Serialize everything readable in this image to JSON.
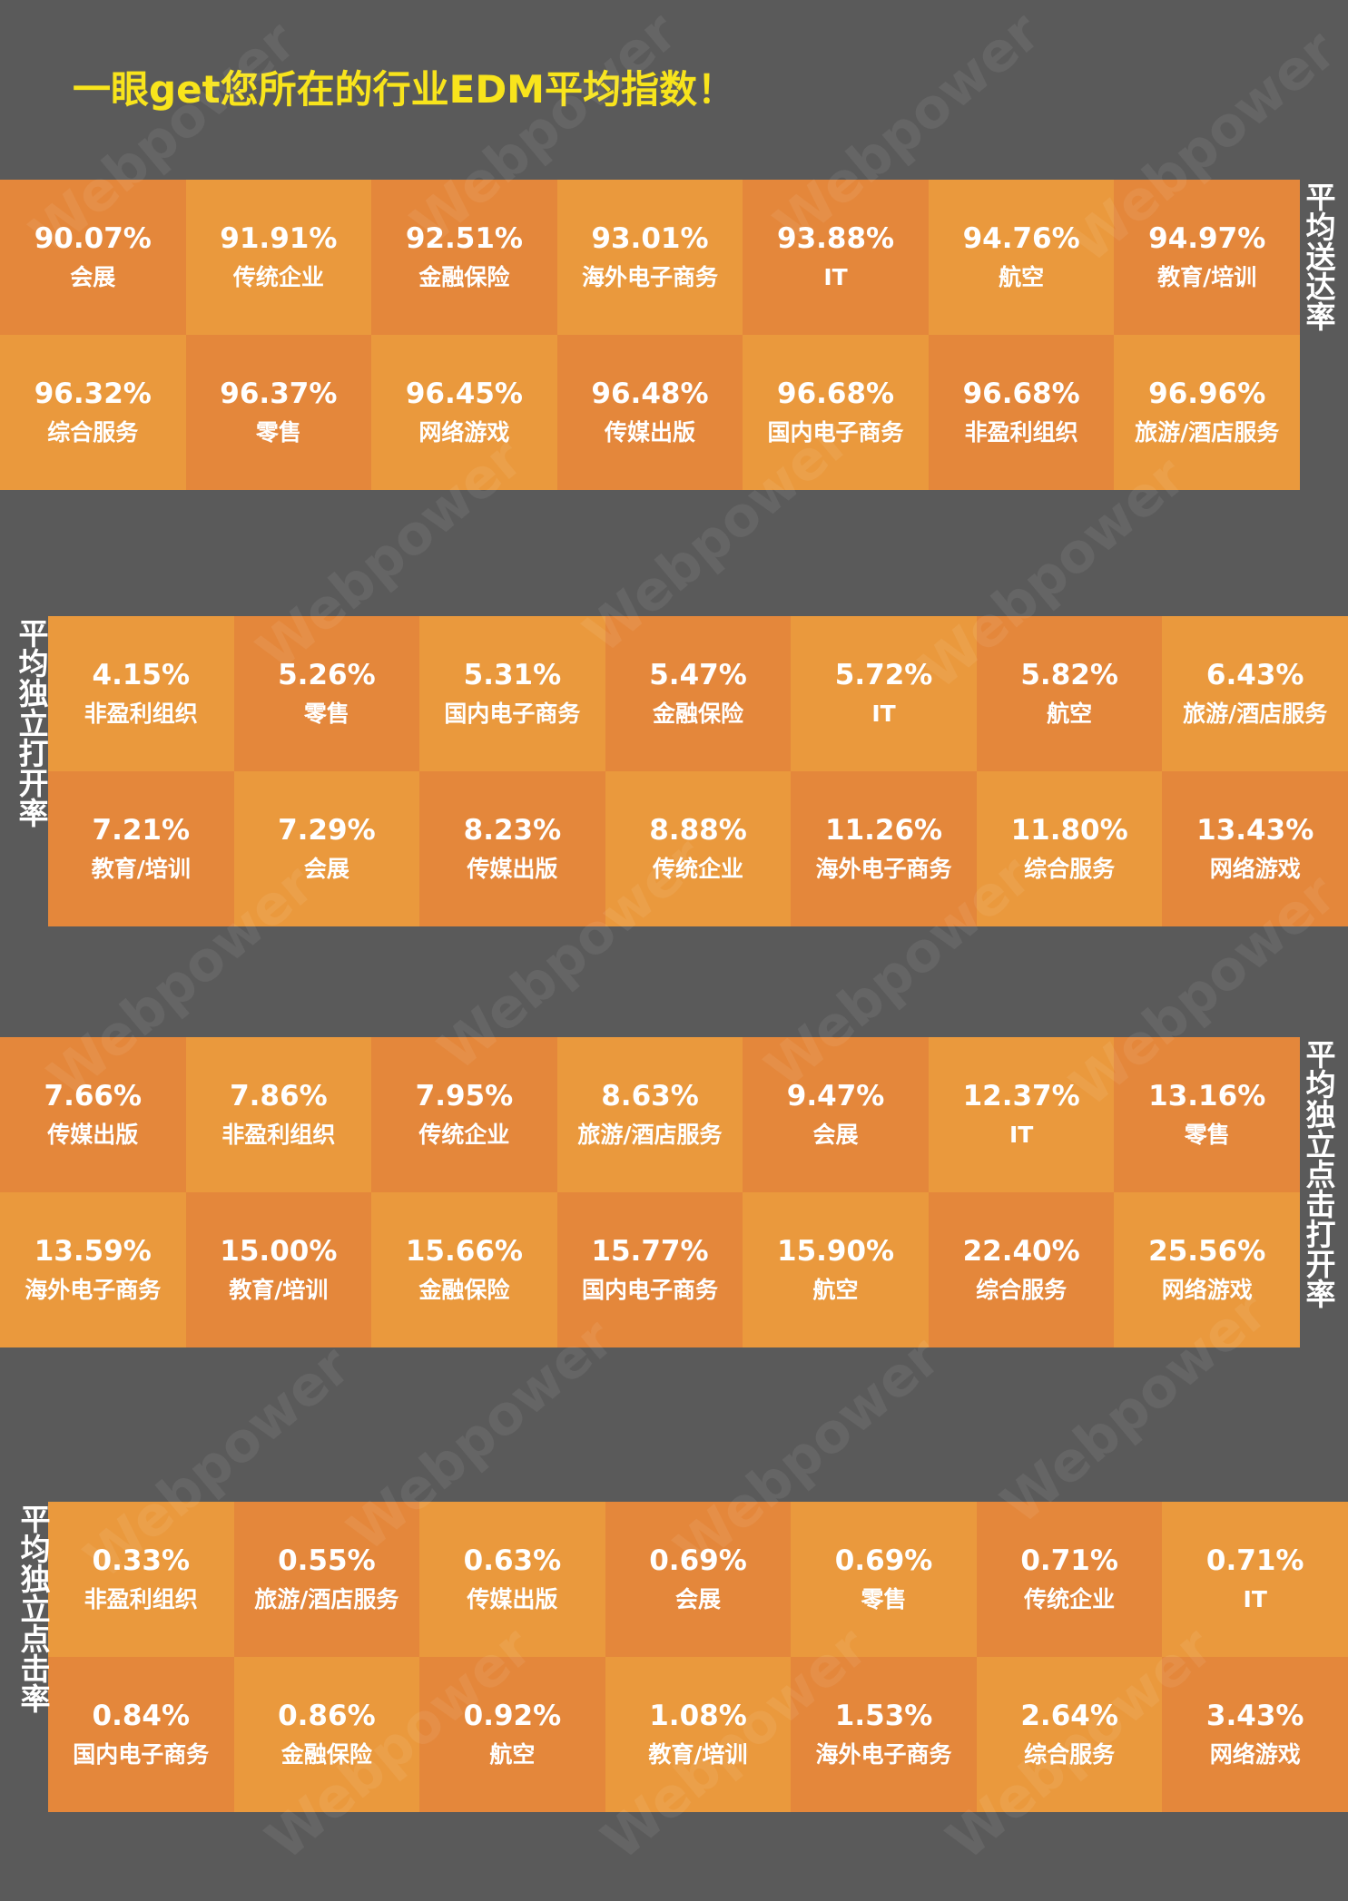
{
  "title": "一眼get您所在的行业EDM平均指数！",
  "watermark": "Webpower",
  "colors": {
    "background": "#5a5a5a",
    "title": "#f8e41c",
    "cell_dark": "#e4873b",
    "cell_light": "#ea993d",
    "text": "#ffffff"
  },
  "chart_data": [
    {
      "type": "table",
      "title": "平均送达率",
      "rows": [
        [
          {
            "rate": "90.07%",
            "industry": "会展"
          },
          {
            "rate": "91.91%",
            "industry": "传统企业"
          },
          {
            "rate": "92.51%",
            "industry": "金融保险"
          },
          {
            "rate": "93.01%",
            "industry": "海外电子商务"
          },
          {
            "rate": "93.88%",
            "industry": "IT"
          },
          {
            "rate": "94.76%",
            "industry": "航空"
          },
          {
            "rate": "94.97%",
            "industry": "教育/培训"
          }
        ],
        [
          {
            "rate": "96.32%",
            "industry": "综合服务"
          },
          {
            "rate": "96.37%",
            "industry": "零售"
          },
          {
            "rate": "96.45%",
            "industry": "网络游戏"
          },
          {
            "rate": "96.48%",
            "industry": "传媒出版"
          },
          {
            "rate": "96.68%",
            "industry": "国内电子商务"
          },
          {
            "rate": "96.68%",
            "industry": "非盈利组织"
          },
          {
            "rate": "96.96%",
            "industry": "旅游/酒店服务"
          }
        ]
      ]
    },
    {
      "type": "table",
      "title": "平均独立打开率",
      "rows": [
        [
          {
            "rate": "4.15%",
            "industry": "非盈利组织"
          },
          {
            "rate": "5.26%",
            "industry": "零售"
          },
          {
            "rate": "5.31%",
            "industry": "国内电子商务"
          },
          {
            "rate": "5.47%",
            "industry": "金融保险"
          },
          {
            "rate": "5.72%",
            "industry": "IT"
          },
          {
            "rate": "5.82%",
            "industry": "航空"
          },
          {
            "rate": "6.43%",
            "industry": "旅游/酒店服务"
          }
        ],
        [
          {
            "rate": "7.21%",
            "industry": "教育/培训"
          },
          {
            "rate": "7.29%",
            "industry": "会展"
          },
          {
            "rate": "8.23%",
            "industry": "传媒出版"
          },
          {
            "rate": "8.88%",
            "industry": "传统企业"
          },
          {
            "rate": "11.26%",
            "industry": "海外电子商务"
          },
          {
            "rate": "11.80%",
            "industry": "综合服务"
          },
          {
            "rate": "13.43%",
            "industry": "网络游戏"
          }
        ]
      ]
    },
    {
      "type": "table",
      "title": "平均独立点击打开率",
      "rows": [
        [
          {
            "rate": "7.66%",
            "industry": "传媒出版"
          },
          {
            "rate": "7.86%",
            "industry": "非盈利组织"
          },
          {
            "rate": "7.95%",
            "industry": "传统企业"
          },
          {
            "rate": "8.63%",
            "industry": "旅游/酒店服务"
          },
          {
            "rate": "9.47%",
            "industry": "会展"
          },
          {
            "rate": "12.37%",
            "industry": "IT"
          },
          {
            "rate": "13.16%",
            "industry": "零售"
          }
        ],
        [
          {
            "rate": "13.59%",
            "industry": "海外电子商务"
          },
          {
            "rate": "15.00%",
            "industry": "教育/培训"
          },
          {
            "rate": "15.66%",
            "industry": "金融保险"
          },
          {
            "rate": "15.77%",
            "industry": "国内电子商务"
          },
          {
            "rate": "15.90%",
            "industry": "航空"
          },
          {
            "rate": "22.40%",
            "industry": "综合服务"
          },
          {
            "rate": "25.56%",
            "industry": "网络游戏"
          }
        ]
      ]
    },
    {
      "type": "table",
      "title": "平均独立点击率",
      "rows": [
        [
          {
            "rate": "0.33%",
            "industry": "非盈利组织"
          },
          {
            "rate": "0.55%",
            "industry": "旅游/酒店服务"
          },
          {
            "rate": "0.63%",
            "industry": "传媒出版"
          },
          {
            "rate": "0.69%",
            "industry": "会展"
          },
          {
            "rate": "0.69%",
            "industry": "零售"
          },
          {
            "rate": "0.71%",
            "industry": "传统企业"
          },
          {
            "rate": "0.71%",
            "industry": "IT"
          }
        ],
        [
          {
            "rate": "0.84%",
            "industry": "国内电子商务"
          },
          {
            "rate": "0.86%",
            "industry": "金融保险"
          },
          {
            "rate": "0.92%",
            "industry": "航空"
          },
          {
            "rate": "1.08%",
            "industry": "教育/培训"
          },
          {
            "rate": "1.53%",
            "industry": "海外电子商务"
          },
          {
            "rate": "2.64%",
            "industry": "综合服务"
          },
          {
            "rate": "3.43%",
            "industry": "网络游戏"
          }
        ]
      ]
    }
  ]
}
